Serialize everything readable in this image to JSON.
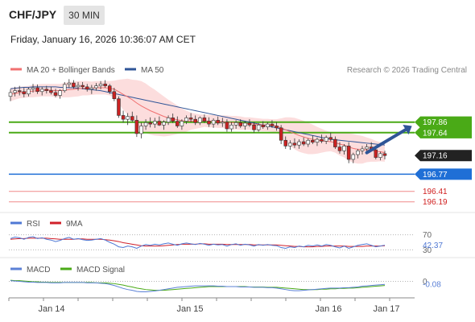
{
  "header": {
    "symbol": "CHF/JPY",
    "timeframe": "30 MIN",
    "timestamp": "Friday, January 16, 2026 10:36:07 AM CET"
  },
  "credit": "Research © 2026 Trading Central",
  "colors": {
    "ma20": "#f07070",
    "bollinger_fill": "#fbd7d7",
    "ma50": "#2f5597",
    "resistance": "#4aaa17",
    "pivot": "#1f6fd6",
    "support": "#f08a8a",
    "last_price": "#222222",
    "rsi": "#4f78d4",
    "rsi_ma": "#d0202a",
    "macd": "#5b80d6",
    "macd_signal": "#4aaa17",
    "candle_up": "#ffffff",
    "candle_down": "#cc2222",
    "arrow": "#2f5597"
  },
  "chart_data": [
    {
      "type": "candlestick",
      "panel": "price",
      "legend": [
        {
          "name": "MA 20 + Bollinger Bands",
          "color": "#f07070"
        },
        {
          "name": "MA 50",
          "color": "#2f5597"
        }
      ],
      "ylim": [
        196.0,
        198.8
      ],
      "x_ticks": [
        "Jan 14",
        "Jan 15",
        "Jan 16",
        "Jan 17"
      ],
      "levels": [
        {
          "label": "197.86",
          "value": 197.86,
          "kind": "resistance"
        },
        {
          "label": "197.64",
          "value": 197.64,
          "kind": "resistance"
        },
        {
          "label": "197.16",
          "value": 197.16,
          "kind": "last_price"
        },
        {
          "label": "196.77",
          "value": 196.77,
          "kind": "pivot"
        },
        {
          "label": "196.41",
          "value": 196.41,
          "kind": "support"
        },
        {
          "label": "196.19",
          "value": 196.19,
          "kind": "support"
        }
      ],
      "ohlc": [
        [
          198.4,
          198.55,
          198.3,
          198.48
        ],
        [
          198.48,
          198.6,
          198.4,
          198.52
        ],
        [
          198.52,
          198.62,
          198.42,
          198.5
        ],
        [
          198.5,
          198.58,
          198.38,
          198.45
        ],
        [
          198.45,
          198.58,
          198.4,
          198.55
        ],
        [
          198.55,
          198.66,
          198.48,
          198.58
        ],
        [
          198.58,
          198.65,
          198.45,
          198.5
        ],
        [
          198.5,
          198.6,
          198.42,
          198.55
        ],
        [
          198.55,
          198.62,
          198.46,
          198.52
        ],
        [
          198.52,
          198.6,
          198.44,
          198.48
        ],
        [
          198.48,
          198.56,
          198.38,
          198.42
        ],
        [
          198.42,
          198.55,
          198.35,
          198.52
        ],
        [
          198.52,
          198.7,
          198.48,
          198.65
        ],
        [
          198.65,
          198.76,
          198.58,
          198.68
        ],
        [
          198.68,
          198.74,
          198.56,
          198.6
        ],
        [
          198.6,
          198.7,
          198.52,
          198.63
        ],
        [
          198.63,
          198.7,
          198.55,
          198.6
        ],
        [
          198.6,
          198.66,
          198.5,
          198.55
        ],
        [
          198.55,
          198.64,
          198.45,
          198.58
        ],
        [
          198.58,
          198.68,
          198.52,
          198.62
        ],
        [
          198.62,
          198.72,
          198.55,
          198.66
        ],
        [
          198.66,
          198.74,
          198.58,
          198.62
        ],
        [
          198.62,
          198.66,
          198.45,
          198.5
        ],
        [
          198.5,
          198.58,
          198.3,
          198.35
        ],
        [
          198.35,
          198.4,
          197.95,
          198.0
        ],
        [
          198.0,
          198.1,
          197.85,
          197.92
        ],
        [
          197.92,
          198.05,
          197.8,
          197.98
        ],
        [
          197.98,
          198.08,
          197.86,
          197.9
        ],
        [
          197.9,
          198.0,
          197.55,
          197.62
        ],
        [
          197.62,
          197.85,
          197.52,
          197.78
        ],
        [
          197.78,
          197.92,
          197.7,
          197.85
        ],
        [
          197.85,
          197.96,
          197.75,
          197.82
        ],
        [
          197.82,
          197.95,
          197.74,
          197.88
        ],
        [
          197.88,
          197.98,
          197.78,
          197.8
        ],
        [
          197.8,
          197.9,
          197.7,
          197.86
        ],
        [
          197.86,
          198.0,
          197.8,
          197.95
        ],
        [
          197.95,
          198.04,
          197.84,
          197.88
        ],
        [
          197.88,
          197.98,
          197.74,
          197.78
        ],
        [
          197.78,
          197.92,
          197.7,
          197.88
        ],
        [
          197.88,
          198.0,
          197.82,
          197.95
        ],
        [
          197.95,
          198.05,
          197.86,
          197.92
        ],
        [
          197.92,
          198.0,
          197.8,
          197.85
        ],
        [
          197.85,
          197.98,
          197.8,
          197.95
        ],
        [
          197.95,
          198.02,
          197.84,
          197.88
        ],
        [
          197.88,
          197.96,
          197.76,
          197.82
        ],
        [
          197.82,
          197.94,
          197.74,
          197.9
        ],
        [
          197.9,
          197.98,
          197.8,
          197.84
        ],
        [
          197.84,
          197.95,
          197.76,
          197.86
        ],
        [
          197.86,
          197.92,
          197.66,
          197.72
        ],
        [
          197.72,
          197.86,
          197.66,
          197.8
        ],
        [
          197.8,
          197.9,
          197.72,
          197.85
        ],
        [
          197.85,
          197.92,
          197.74,
          197.78
        ],
        [
          197.78,
          197.88,
          197.7,
          197.84
        ],
        [
          197.84,
          197.92,
          197.76,
          197.8
        ],
        [
          197.8,
          197.86,
          197.64,
          197.7
        ],
        [
          197.7,
          197.84,
          197.66,
          197.8
        ],
        [
          197.8,
          197.88,
          197.72,
          197.76
        ],
        [
          197.76,
          197.86,
          197.7,
          197.82
        ],
        [
          197.82,
          197.9,
          197.74,
          197.78
        ],
        [
          197.78,
          197.86,
          197.68,
          197.74
        ],
        [
          197.74,
          197.8,
          197.4,
          197.48
        ],
        [
          197.48,
          197.56,
          197.3,
          197.36
        ],
        [
          197.36,
          197.48,
          197.28,
          197.42
        ],
        [
          197.42,
          197.52,
          197.32,
          197.38
        ],
        [
          197.38,
          197.5,
          197.3,
          197.45
        ],
        [
          197.45,
          197.54,
          197.36,
          197.4
        ],
        [
          197.4,
          197.52,
          197.34,
          197.48
        ],
        [
          197.48,
          197.58,
          197.4,
          197.44
        ],
        [
          197.44,
          197.54,
          197.36,
          197.5
        ],
        [
          197.5,
          197.6,
          197.42,
          197.46
        ],
        [
          197.46,
          197.58,
          197.4,
          197.54
        ],
        [
          197.54,
          197.64,
          197.46,
          197.5
        ],
        [
          197.5,
          197.56,
          197.3,
          197.34
        ],
        [
          197.34,
          197.44,
          197.2,
          197.26
        ],
        [
          197.26,
          197.4,
          197.18,
          197.36
        ],
        [
          197.36,
          197.44,
          197.0,
          197.08
        ],
        [
          197.08,
          197.22,
          197.0,
          197.18
        ],
        [
          197.18,
          197.3,
          197.1,
          197.26
        ],
        [
          197.26,
          197.36,
          197.18,
          197.3
        ],
        [
          197.3,
          197.4,
          197.22,
          197.34
        ],
        [
          197.34,
          197.44,
          197.24,
          197.28
        ],
        [
          197.28,
          197.34,
          197.08,
          197.12
        ],
        [
          197.12,
          197.24,
          197.06,
          197.2
        ],
        [
          197.2,
          197.26,
          197.08,
          197.16
        ]
      ],
      "ma20": [
        198.44,
        198.46,
        198.48,
        198.49,
        198.5,
        198.51,
        198.52,
        198.53,
        198.53,
        198.53,
        198.52,
        198.52,
        198.53,
        198.54,
        198.55,
        198.56,
        198.57,
        198.57,
        198.57,
        198.58,
        198.58,
        198.58,
        198.57,
        198.55,
        198.5,
        198.44,
        198.39,
        198.33,
        198.26,
        198.2,
        198.15,
        198.1,
        198.06,
        198.02,
        197.98,
        197.95,
        197.93,
        197.91,
        197.89,
        197.88,
        197.88,
        197.88,
        197.88,
        197.89,
        197.88,
        197.88,
        197.87,
        197.87,
        197.86,
        197.85,
        197.85,
        197.84,
        197.83,
        197.83,
        197.82,
        197.81,
        197.8,
        197.8,
        197.79,
        197.78,
        197.74,
        197.7,
        197.66,
        197.62,
        197.58,
        197.55,
        197.52,
        197.5,
        197.48,
        197.47,
        197.46,
        197.45,
        197.43,
        197.4,
        197.38,
        197.34,
        197.31,
        197.29,
        197.28,
        197.28,
        197.27,
        197.25,
        197.24,
        197.22
      ],
      "ma50": [
        198.56,
        198.57,
        198.58,
        198.59,
        198.59,
        198.6,
        198.6,
        198.6,
        198.6,
        198.6,
        198.6,
        198.59,
        198.59,
        198.58,
        198.58,
        198.57,
        198.56,
        198.55,
        198.54,
        198.53,
        198.52,
        198.5,
        198.48,
        198.46,
        198.44,
        198.42,
        198.4,
        198.38,
        198.36,
        198.34,
        198.32,
        198.3,
        198.28,
        198.26,
        198.24,
        198.22,
        198.2,
        198.18,
        198.16,
        198.14,
        198.12,
        198.1,
        198.08,
        198.06,
        198.04,
        198.02,
        198.0,
        197.98,
        197.96,
        197.94,
        197.92,
        197.9,
        197.88,
        197.86,
        197.84,
        197.82,
        197.8,
        197.78,
        197.76,
        197.74,
        197.72,
        197.7,
        197.68,
        197.66,
        197.64,
        197.62,
        197.6,
        197.58,
        197.56,
        197.54,
        197.52,
        197.5,
        197.49,
        197.48,
        197.47,
        197.46,
        197.45,
        197.44,
        197.43,
        197.42,
        197.41,
        197.4,
        197.39,
        197.38
      ],
      "bb_width": [
        0.14,
        0.13,
        0.12,
        0.12,
        0.12,
        0.13,
        0.13,
        0.13,
        0.13,
        0.13,
        0.14,
        0.14,
        0.15,
        0.16,
        0.16,
        0.16,
        0.15,
        0.15,
        0.14,
        0.14,
        0.14,
        0.14,
        0.15,
        0.18,
        0.25,
        0.32,
        0.38,
        0.42,
        0.48,
        0.52,
        0.52,
        0.5,
        0.48,
        0.45,
        0.42,
        0.38,
        0.34,
        0.3,
        0.26,
        0.22,
        0.18,
        0.16,
        0.14,
        0.13,
        0.13,
        0.13,
        0.13,
        0.13,
        0.14,
        0.14,
        0.14,
        0.14,
        0.13,
        0.13,
        0.13,
        0.13,
        0.13,
        0.13,
        0.13,
        0.14,
        0.2,
        0.26,
        0.3,
        0.33,
        0.34,
        0.34,
        0.33,
        0.31,
        0.28,
        0.25,
        0.22,
        0.2,
        0.21,
        0.24,
        0.26,
        0.29,
        0.3,
        0.3,
        0.29,
        0.26,
        0.24,
        0.22,
        0.2,
        0.19
      ],
      "arrow": {
        "from": [
          79,
          197.22
        ],
        "to": [
          89,
          197.78
        ]
      }
    },
    {
      "type": "line",
      "panel": "rsi",
      "legend": [
        {
          "name": "RSI",
          "color": "#4f78d4"
        },
        {
          "name": "9MA",
          "color": "#d0202a"
        }
      ],
      "ylim": [
        20,
        80
      ],
      "levels": [
        {
          "label": "70",
          "value": 70
        },
        {
          "label": "30",
          "value": 30
        }
      ],
      "current": {
        "label": "42.37",
        "value": 42.37
      },
      "rsi": [
        60,
        64,
        62,
        58,
        63,
        65,
        60,
        62,
        58,
        56,
        52,
        55,
        60,
        63,
        58,
        60,
        57,
        55,
        56,
        58,
        60,
        56,
        50,
        45,
        38,
        36,
        40,
        38,
        34,
        40,
        44,
        42,
        45,
        43,
        46,
        48,
        45,
        42,
        46,
        48,
        46,
        44,
        47,
        45,
        42,
        45,
        43,
        44,
        40,
        44,
        46,
        42,
        45,
        43,
        40,
        44,
        42,
        44,
        42,
        41,
        36,
        34,
        38,
        36,
        40,
        38,
        42,
        40,
        43,
        40,
        44,
        42,
        38,
        35,
        40,
        34,
        38,
        42,
        44,
        46,
        42,
        38,
        40,
        42.37
      ],
      "ma": [
        58,
        59,
        60,
        60,
        61,
        61,
        61,
        61,
        61,
        60,
        59,
        58,
        58,
        58,
        58,
        59,
        59,
        58,
        58,
        58,
        58,
        57,
        56,
        54,
        52,
        49,
        47,
        45,
        43,
        41,
        40,
        40,
        40,
        40,
        41,
        42,
        43,
        44,
        45,
        45,
        45,
        45,
        46,
        46,
        45,
        45,
        45,
        45,
        44,
        44,
        44,
        44,
        44,
        44,
        43,
        43,
        43,
        43,
        43,
        43,
        42,
        41,
        40,
        39,
        39,
        38,
        38,
        38,
        39,
        39,
        40,
        40,
        40,
        40,
        40,
        39,
        39,
        39,
        39,
        40,
        40,
        40,
        40,
        41
      ]
    },
    {
      "type": "line",
      "panel": "macd",
      "legend": [
        {
          "name": "MACD",
          "color": "#5b80d6"
        },
        {
          "name": "MACD Signal",
          "color": "#4aaa17"
        }
      ],
      "ylim": [
        -0.4,
        0.12
      ],
      "levels": [
        {
          "label": "0",
          "value": 0
        }
      ],
      "current": {
        "label": "-0.08",
        "value": -0.08
      },
      "macd": [
        0.02,
        0.01,
        0.0,
        -0.01,
        -0.02,
        -0.02,
        -0.03,
        -0.03,
        -0.03,
        -0.04,
        -0.04,
        -0.04,
        -0.03,
        -0.03,
        -0.03,
        -0.03,
        -0.03,
        -0.04,
        -0.04,
        -0.04,
        -0.05,
        -0.06,
        -0.08,
        -0.11,
        -0.15,
        -0.19,
        -0.22,
        -0.24,
        -0.27,
        -0.28,
        -0.28,
        -0.27,
        -0.26,
        -0.24,
        -0.22,
        -0.2,
        -0.18,
        -0.16,
        -0.15,
        -0.14,
        -0.13,
        -0.12,
        -0.12,
        -0.12,
        -0.12,
        -0.12,
        -0.13,
        -0.13,
        -0.14,
        -0.14,
        -0.14,
        -0.15,
        -0.15,
        -0.15,
        -0.16,
        -0.16,
        -0.16,
        -0.17,
        -0.17,
        -0.18,
        -0.2,
        -0.22,
        -0.24,
        -0.25,
        -0.25,
        -0.24,
        -0.23,
        -0.22,
        -0.21,
        -0.2,
        -0.19,
        -0.18,
        -0.18,
        -0.18,
        -0.17,
        -0.17,
        -0.16,
        -0.15,
        -0.13,
        -0.12,
        -0.11,
        -0.1,
        -0.09,
        -0.08
      ],
      "signal": [
        0.03,
        0.02,
        0.02,
        0.01,
        0.0,
        -0.01,
        -0.01,
        -0.02,
        -0.02,
        -0.03,
        -0.03,
        -0.03,
        -0.03,
        -0.03,
        -0.03,
        -0.03,
        -0.03,
        -0.03,
        -0.03,
        -0.04,
        -0.04,
        -0.04,
        -0.05,
        -0.06,
        -0.08,
        -0.1,
        -0.13,
        -0.15,
        -0.18,
        -0.2,
        -0.22,
        -0.23,
        -0.24,
        -0.24,
        -0.24,
        -0.23,
        -0.22,
        -0.21,
        -0.2,
        -0.19,
        -0.18,
        -0.17,
        -0.16,
        -0.15,
        -0.14,
        -0.14,
        -0.14,
        -0.14,
        -0.14,
        -0.14,
        -0.14,
        -0.14,
        -0.14,
        -0.15,
        -0.15,
        -0.15,
        -0.15,
        -0.16,
        -0.16,
        -0.16,
        -0.17,
        -0.18,
        -0.19,
        -0.2,
        -0.21,
        -0.22,
        -0.22,
        -0.22,
        -0.22,
        -0.21,
        -0.21,
        -0.2,
        -0.2,
        -0.19,
        -0.19,
        -0.18,
        -0.18,
        -0.17,
        -0.16,
        -0.15,
        -0.14,
        -0.13,
        -0.12,
        -0.11
      ]
    }
  ]
}
